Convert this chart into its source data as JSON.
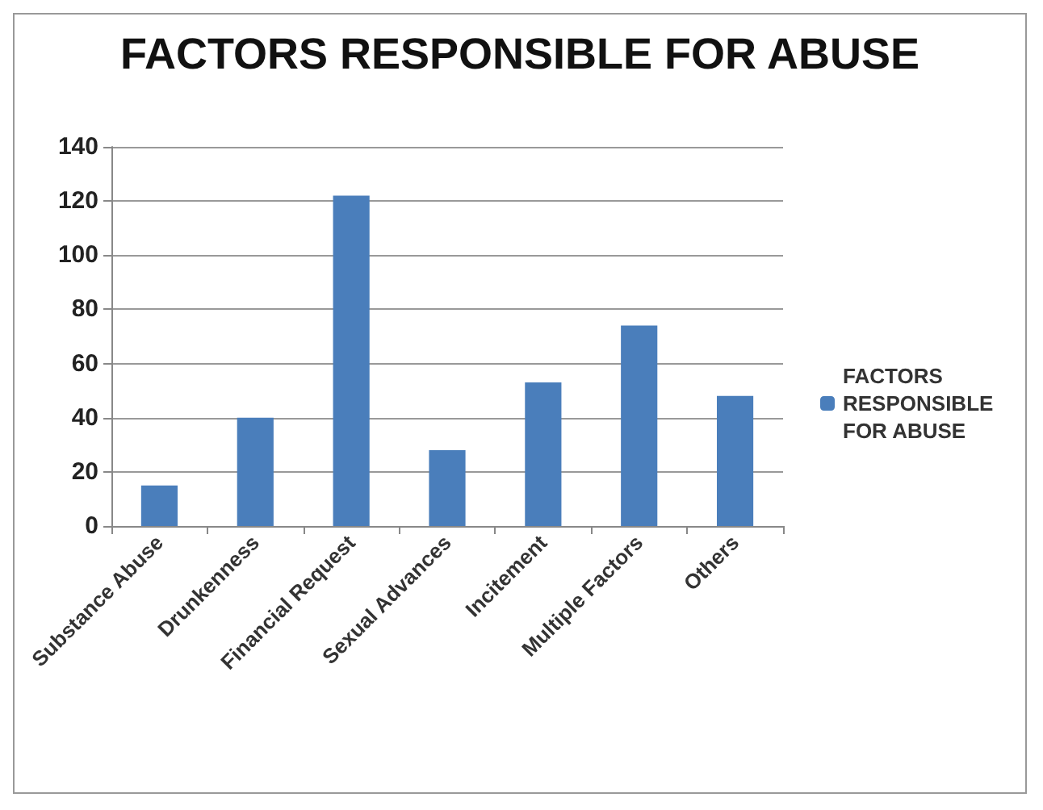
{
  "chart_data": {
    "type": "bar",
    "title": "FACTORS RESPONSIBLE FOR ABUSE",
    "categories": [
      "Substance Abuse",
      "Drunkenness",
      "Financial Request",
      "Sexual Advances",
      "Incitement",
      "Multiple Factors",
      "Others"
    ],
    "series": [
      {
        "name": "FACTORS RESPONSIBLE FOR ABUSE",
        "color": "#4a7ebb",
        "values": [
          15,
          40,
          122,
          28,
          53,
          74,
          48
        ]
      }
    ],
    "ylim": [
      0,
      140
    ],
    "yticks": [
      0,
      20,
      40,
      60,
      80,
      100,
      120,
      140
    ],
    "grid": "y",
    "legend": "right"
  }
}
